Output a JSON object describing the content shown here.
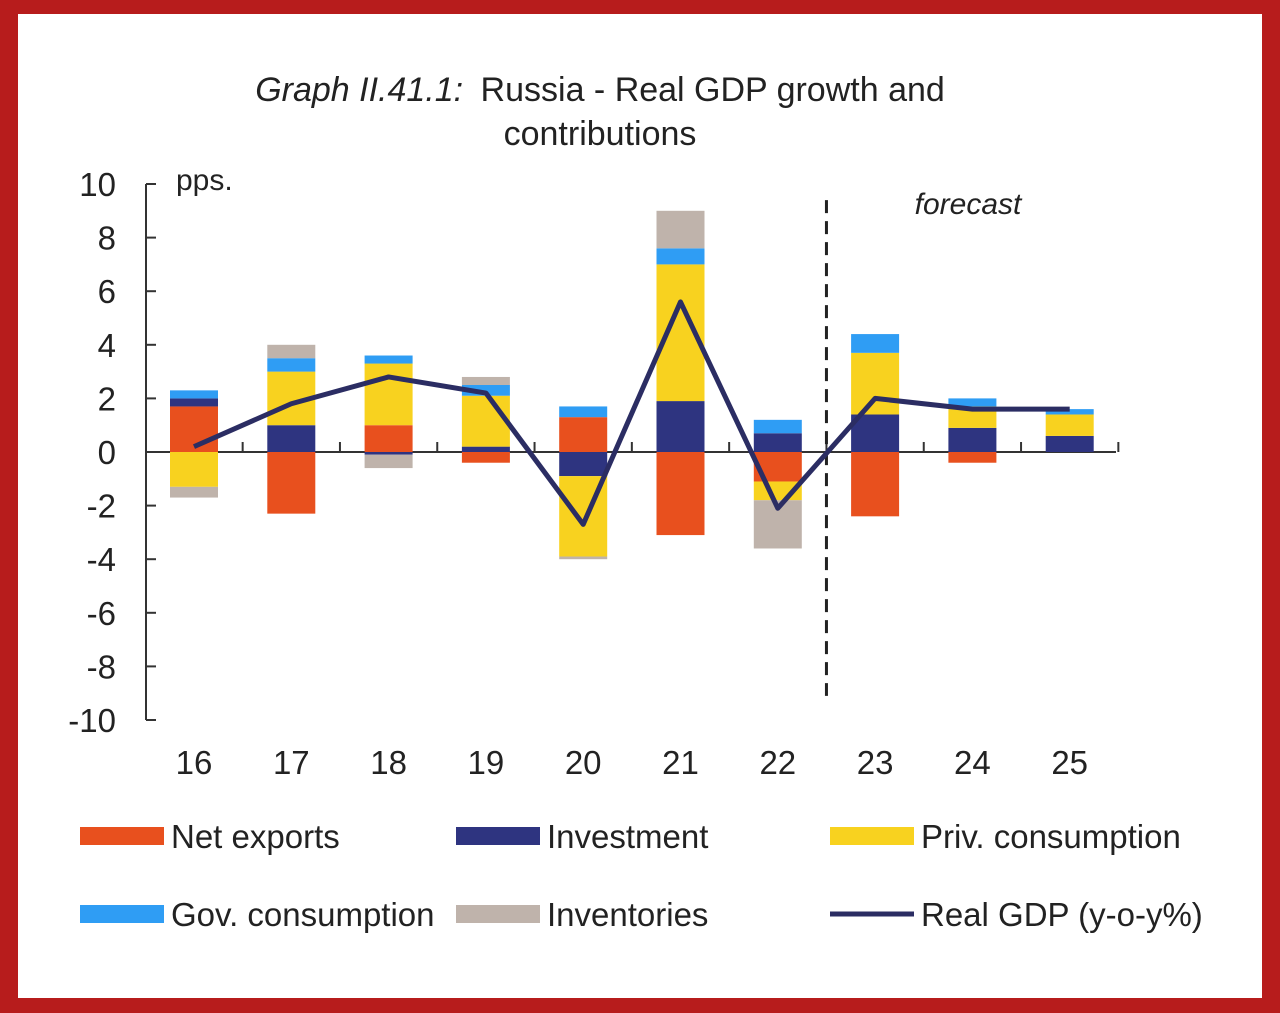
{
  "title": {
    "prefix": "Graph II.41.1:",
    "line1": "Russia - Real GDP growth and",
    "line2": "contributions"
  },
  "colors": {
    "frame": "#b71c1c",
    "net_exports": "#e8501e",
    "investment": "#2e3480",
    "priv_consumption": "#f8d21f",
    "gov_consumption": "#2f9df4",
    "inventories": "#bfb3ab",
    "real_gdp": "#2b2d63"
  },
  "chart_data": {
    "type": "bar",
    "stacked": true,
    "unit_label": "pps.",
    "forecast_label": "forecast",
    "forecast_starts_after": "22",
    "categories": [
      "16",
      "17",
      "18",
      "19",
      "20",
      "21",
      "22",
      "23",
      "24",
      "25"
    ],
    "ylim": [
      -10,
      10
    ],
    "yticks": [
      10,
      8,
      6,
      4,
      2,
      0,
      -2,
      -4,
      -6,
      -8,
      -10
    ],
    "series": [
      {
        "name": "Net exports",
        "key": "net_exports",
        "type": "bar",
        "values": [
          1.7,
          -2.3,
          1.0,
          -0.4,
          1.3,
          -3.1,
          -1.1,
          -2.4,
          -0.4,
          0.0
        ]
      },
      {
        "name": "Investment",
        "key": "investment",
        "type": "bar",
        "values": [
          0.3,
          1.0,
          -0.1,
          0.2,
          -0.9,
          1.9,
          0.7,
          1.4,
          0.9,
          0.6
        ]
      },
      {
        "name": "Priv. consumption",
        "key": "priv_consumption",
        "type": "bar",
        "values": [
          -1.3,
          2.0,
          2.3,
          1.9,
          -3.0,
          5.1,
          -0.7,
          2.3,
          0.8,
          0.8
        ]
      },
      {
        "name": "Gov. consumption",
        "key": "gov_consumption",
        "type": "bar",
        "values": [
          0.3,
          0.5,
          0.3,
          0.4,
          0.4,
          0.6,
          0.5,
          0.7,
          0.3,
          0.2
        ]
      },
      {
        "name": "Inventories",
        "key": "inventories",
        "type": "bar",
        "values": [
          -0.4,
          0.5,
          -0.5,
          0.3,
          -0.1,
          1.4,
          -1.8,
          0.0,
          0.0,
          0.0
        ]
      },
      {
        "name": "Real GDP (y-o-y%)",
        "key": "real_gdp",
        "type": "line",
        "values": [
          0.2,
          1.8,
          2.8,
          2.2,
          -2.7,
          5.6,
          -2.1,
          2.0,
          1.6,
          1.6
        ]
      }
    ],
    "legend_position": "bottom"
  }
}
